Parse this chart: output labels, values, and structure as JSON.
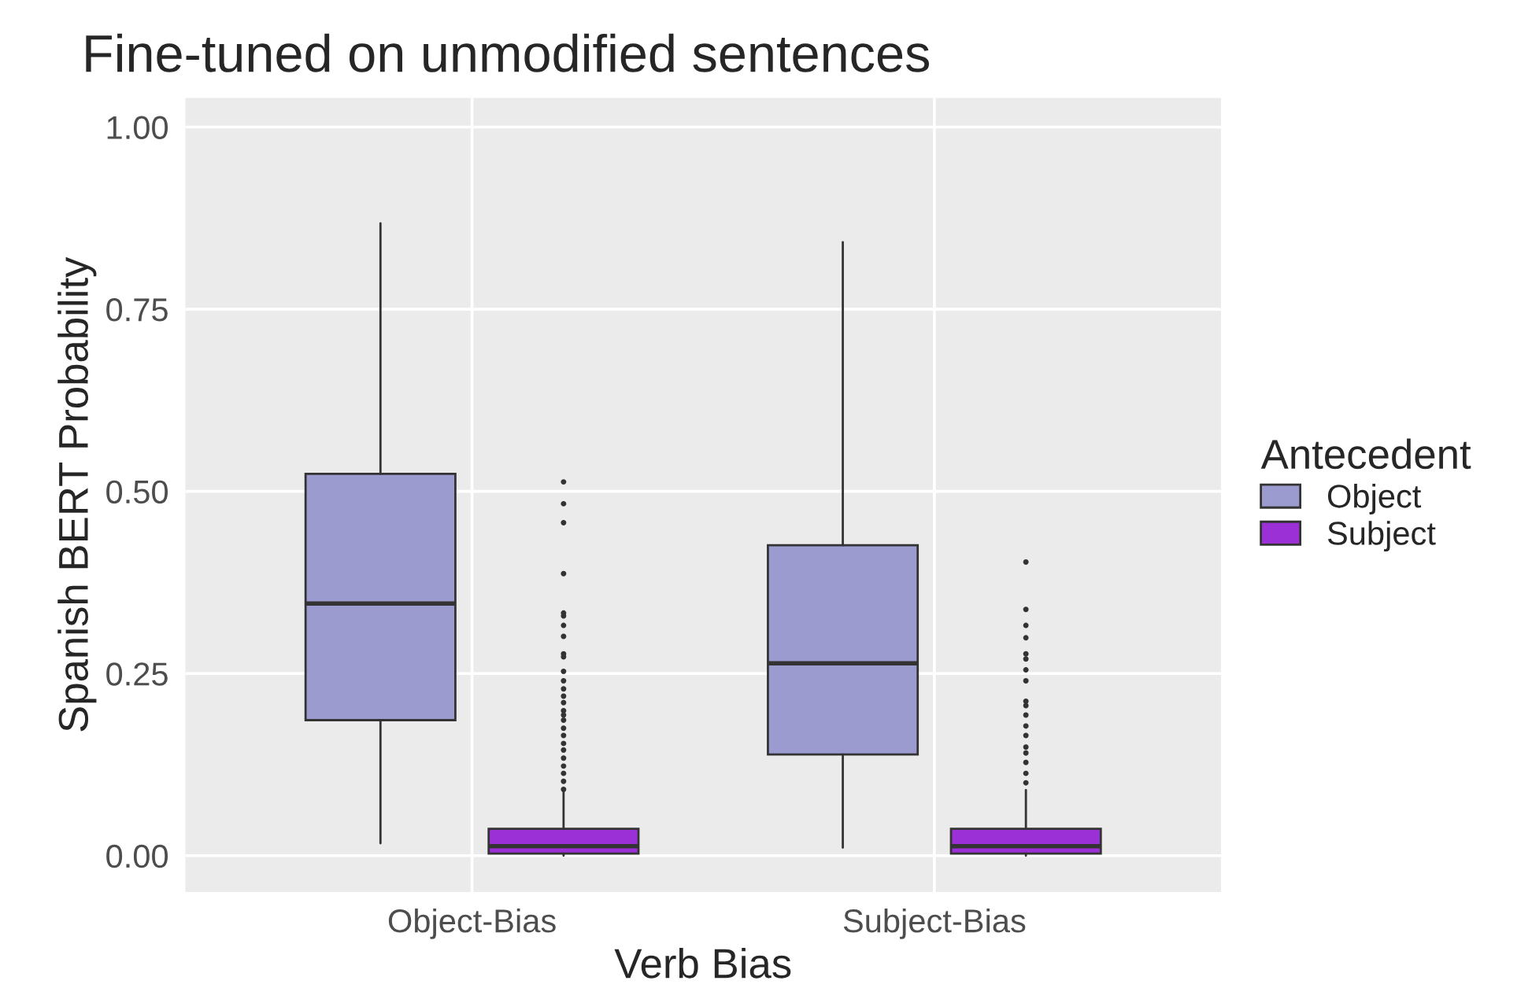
{
  "chart_data": {
    "type": "box",
    "title": "Fine-tuned on unmodified sentences",
    "xlabel": "Verb Bias",
    "ylabel": "Spanish BERT Probability",
    "legend_title": "Antecedent",
    "categories": [
      "Object-Bias",
      "Subject-Bias"
    ],
    "ylim": [
      -0.05,
      1.04
    ],
    "yticks": [
      {
        "value": 0,
        "label": "0.00"
      },
      {
        "value": 0.25,
        "label": "0.25"
      },
      {
        "value": 0.5,
        "label": "0.50"
      },
      {
        "value": 0.75,
        "label": "0.75"
      },
      {
        "value": 1,
        "label": "1.00"
      }
    ],
    "grid": true,
    "legend": "right",
    "series": [
      {
        "name": "Object",
        "color": "#9b9bcf",
        "boxes": [
          {
            "low": 0.017,
            "q1": 0.186,
            "median": 0.346,
            "q3": 0.524,
            "high": 0.868
          },
          {
            "low": 0.011,
            "q1": 0.139,
            "median": 0.264,
            "q3": 0.426,
            "high": 0.842
          }
        ]
      },
      {
        "name": "Subject",
        "color": "#9b30d6",
        "boxes": [
          {
            "low": 0.0,
            "q1": 0.003,
            "median": 0.013,
            "q3": 0.037,
            "high": 0.088,
            "outliers": [
              0.513,
              0.483,
              0.457,
              0.387,
              0.333,
              0.329,
              0.316,
              0.301,
              0.277,
              0.273,
              0.253,
              0.24,
              0.229,
              0.219,
              0.21,
              0.199,
              0.193,
              0.186,
              0.175,
              0.165,
              0.154,
              0.145,
              0.134,
              0.123,
              0.113,
              0.102,
              0.091
            ]
          },
          {
            "low": 0.0,
            "q1": 0.003,
            "median": 0.013,
            "q3": 0.037,
            "high": 0.09,
            "outliers": [
              0.403,
              0.338,
              0.316,
              0.299,
              0.277,
              0.27,
              0.255,
              0.24,
              0.212,
              0.206,
              0.193,
              0.178,
              0.165,
              0.149,
              0.141,
              0.128,
              0.113,
              0.1
            ]
          }
        ]
      }
    ]
  }
}
